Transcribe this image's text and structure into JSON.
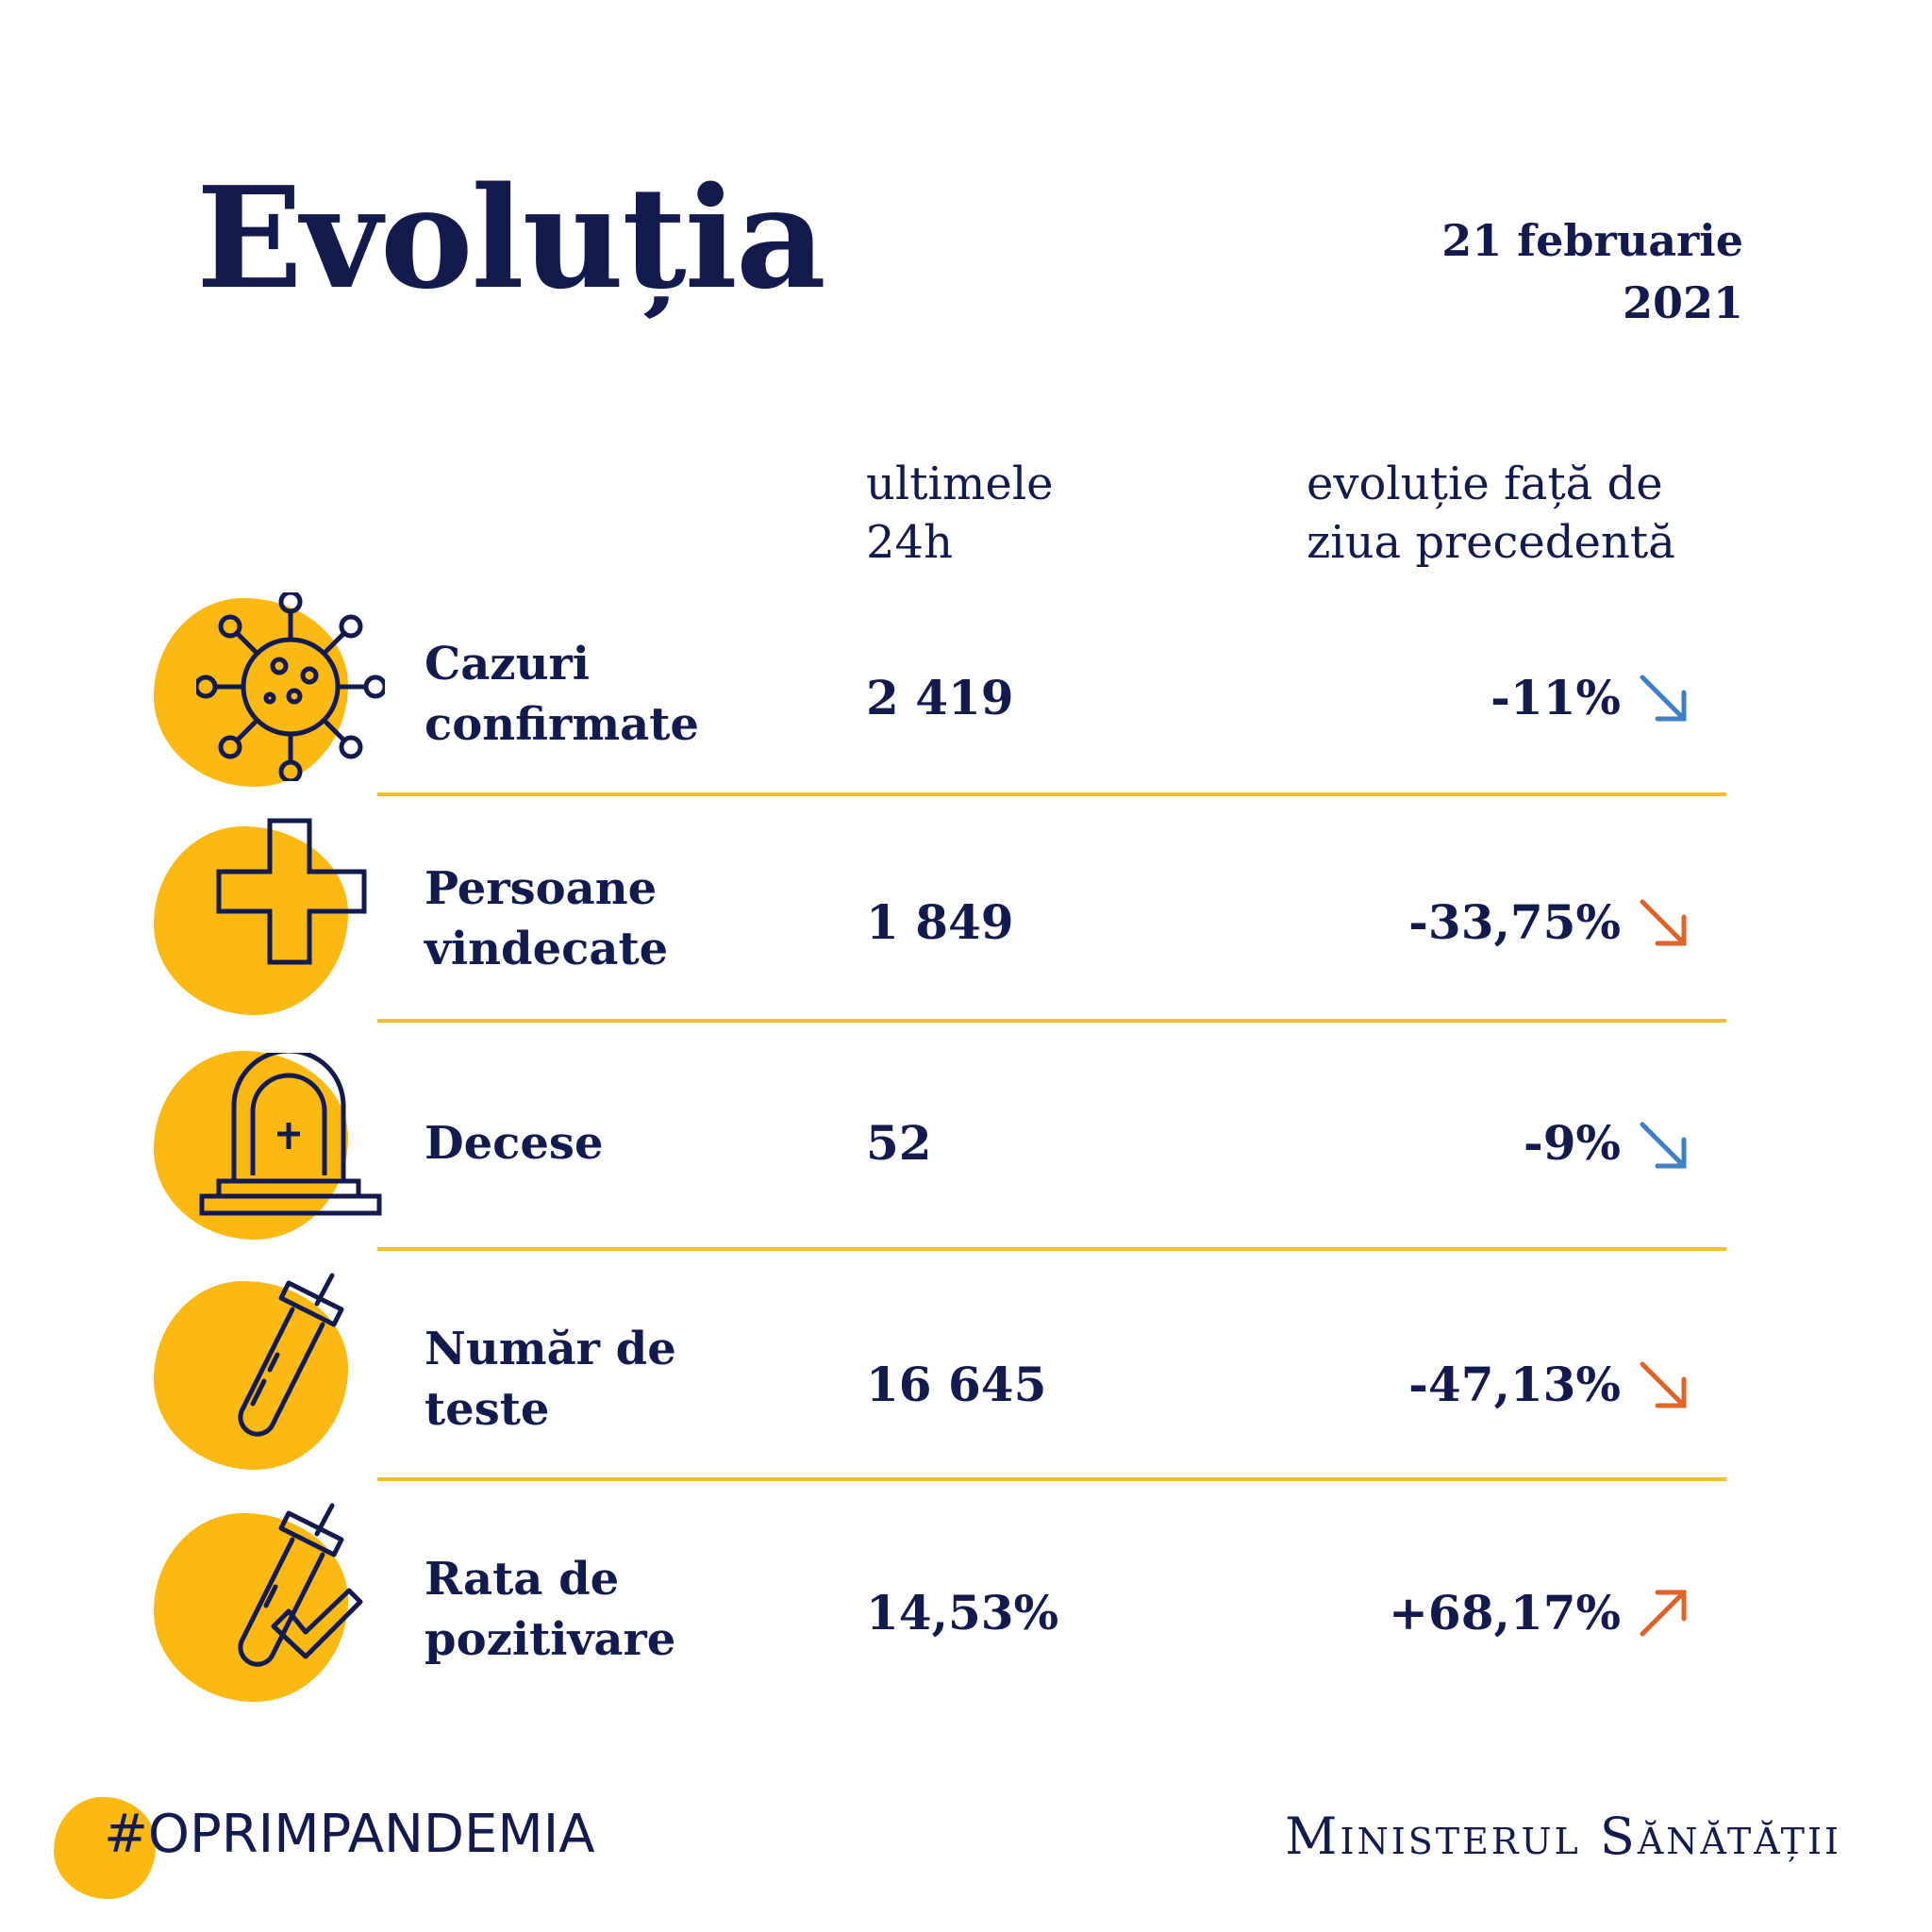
{
  "header": {
    "title": "Evoluția",
    "date_line1": "21 februarie",
    "date_line2": "2021"
  },
  "columns": {
    "last24_line1": "ultimele",
    "last24_line2": "24h",
    "evolution_line1": "evoluție față de",
    "evolution_line2": "ziua precedentă"
  },
  "rows": [
    {
      "icon": "virus-icon",
      "label_line1": "Cazuri",
      "label_line2": "confirmate",
      "value": "2 419",
      "change": "-11%",
      "trend": "down",
      "trend_color": "#3f7fc4"
    },
    {
      "icon": "medical-cross-icon",
      "label_line1": "Persoane",
      "label_line2": "vindecate",
      "value": "1 849",
      "change": "-33,75%",
      "trend": "down",
      "trend_color": "#e0642a"
    },
    {
      "icon": "tombstone-icon",
      "label_line1": "Decese",
      "label_line2": "",
      "value": "52",
      "change": "-9%",
      "trend": "down",
      "trend_color": "#3f7fc4"
    },
    {
      "icon": "test-tube-icon",
      "label_line1": "Număr de",
      "label_line2": "teste",
      "value": "16 645",
      "change": "-47,13%",
      "trend": "down",
      "trend_color": "#e0642a"
    },
    {
      "icon": "test-tube-check-icon",
      "label_line1": "Rata de",
      "label_line2": "pozitivare",
      "value": "14,53%",
      "change": "+68,17%",
      "trend": "up",
      "trend_color": "#e0642a"
    }
  ],
  "footer": {
    "hashtag": "#OPRIMPANDEMIA",
    "ministry": "Ministerul Sănătății"
  },
  "colors": {
    "navy": "#131a4e",
    "yellow": "#fbb911",
    "divider": "#f5bf2c"
  }
}
